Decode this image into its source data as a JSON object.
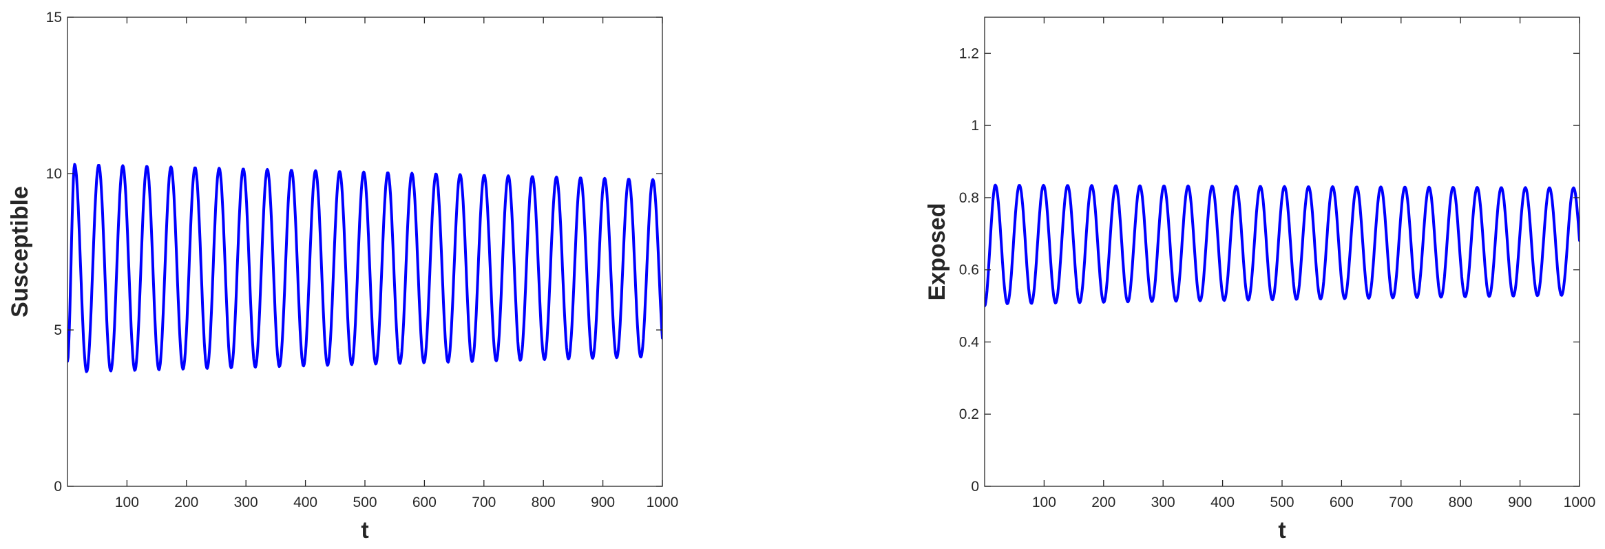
{
  "chart_data": [
    {
      "type": "line",
      "title": "",
      "xlabel": "t",
      "ylabel": "Susceptible",
      "xlim": [
        0,
        1000
      ],
      "ylim": [
        0,
        15
      ],
      "xticks": [
        100,
        200,
        300,
        400,
        500,
        600,
        700,
        800,
        900,
        1000
      ],
      "yticks": [
        0,
        5,
        10,
        15
      ],
      "grid": false,
      "series": [
        {
          "color": "#0000ff",
          "shape": "damped periodic oscillation",
          "x_start": 0,
          "y_start": 4.0,
          "period": 40.5,
          "first_peak_t": 12,
          "first_peak_y": 10.3,
          "first_trough_t": 33,
          "first_trough_y": 3.65,
          "last_peak_y": 9.8,
          "last_trough_y": 4.15,
          "x_end": 1000,
          "y_end": 6.2
        }
      ]
    },
    {
      "type": "line",
      "title": "",
      "xlabel": "t",
      "ylabel": "Exposed",
      "xlim": [
        0,
        1000
      ],
      "ylim": [
        0,
        1.3
      ],
      "xticks": [
        100,
        200,
        300,
        400,
        500,
        600,
        700,
        800,
        900,
        1000
      ],
      "yticks": [
        0,
        0.2,
        0.4,
        0.6,
        0.8,
        1,
        1.2
      ],
      "grid": false,
      "series": [
        {
          "color": "#0000ff",
          "shape": "damped periodic oscillation",
          "x_start": 0,
          "y_start": 0.5,
          "period": 40.5,
          "first_peak_t": 18,
          "first_peak_y": 0.835,
          "first_trough_t": 38,
          "first_trough_y": 0.505,
          "last_peak_y": 0.827,
          "last_trough_y": 0.53,
          "x_end": 1000,
          "y_end": 0.535
        }
      ]
    }
  ]
}
